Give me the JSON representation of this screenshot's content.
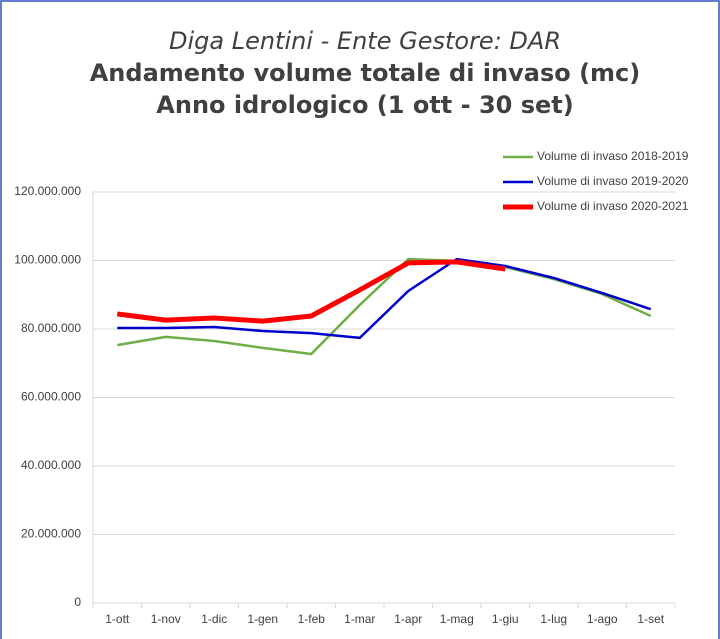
{
  "chart_data": {
    "type": "line",
    "title": [
      "Diga Lentini - Ente Gestore: DAR",
      "Andamento volume totale di invaso (mc)",
      "Anno idrologico (1 ott - 30 set)"
    ],
    "categories": [
      "1-ott",
      "1-nov",
      "1-dic",
      "1-gen",
      "1-feb",
      "1-mar",
      "1-apr",
      "1-mag",
      "1-giu",
      "1-lug",
      "1-ago",
      "1-set"
    ],
    "series": [
      {
        "name": "Volume di invaso 2018-2019",
        "color": "#70ad47",
        "width": 2.5,
        "values": [
          75300000,
          77700000,
          76500000,
          74500000,
          72700000,
          87000000,
          100400000,
          99900000,
          98100000,
          94600000,
          90200000,
          83800000
        ]
      },
      {
        "name": "Volume di invaso 2019-2020",
        "color": "#0000cc",
        "width": 2.5,
        "values": [
          80300000,
          80300000,
          80600000,
          79400000,
          78800000,
          77400000,
          91100000,
          100400000,
          98400000,
          94900000,
          90500000,
          85800000
        ]
      },
      {
        "name": "Volume di invaso 2020-2021",
        "color": "#ff0000",
        "width": 5,
        "values": [
          84400000,
          82600000,
          83200000,
          82300000,
          83800000,
          91400000,
          99300000,
          99600000,
          97500000,
          null,
          null,
          null
        ]
      }
    ],
    "ylim": [
      0,
      120000000
    ],
    "yticks": [
      0,
      {
        "value": 20000000,
        "label": "20.000.000"
      },
      {
        "value": 40000000,
        "label": "40.000.000"
      },
      {
        "value": 60000000,
        "label": "60.000.000"
      },
      {
        "value": 80000000,
        "label": "80.000.000"
      },
      {
        "value": 100000000,
        "label": "100.000.000"
      },
      {
        "value": 120000000,
        "label": "120.000.000"
      }
    ],
    "grid": true,
    "legend": "top-right"
  }
}
